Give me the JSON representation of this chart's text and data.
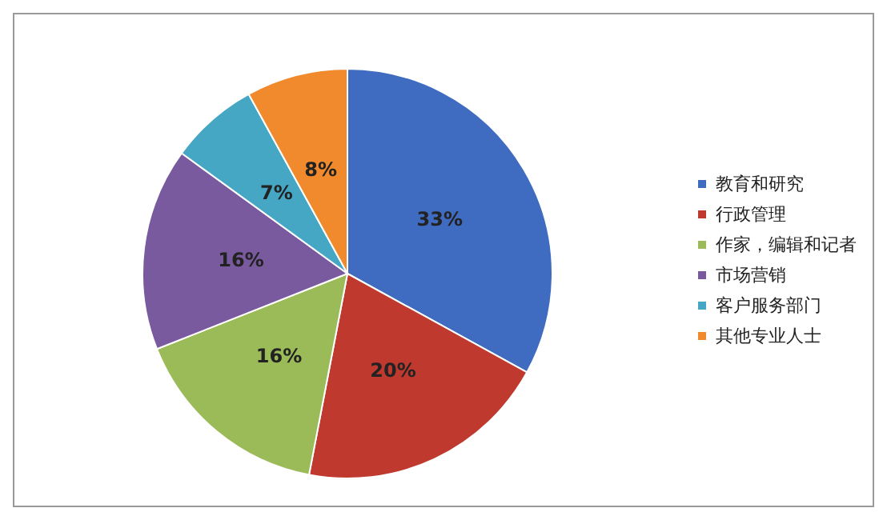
{
  "chart_data": {
    "type": "pie",
    "categories": [
      "教育和研究",
      "行政管理",
      "作家，编辑和记者",
      "市场营销",
      "客户服务部门",
      "其他专业人士"
    ],
    "values": [
      33,
      20,
      16,
      16,
      7,
      8
    ],
    "colors": [
      "#3f6cc0",
      "#c0392f",
      "#9bbb59",
      "#7a5a9e",
      "#45a7c4",
      "#f08a2c"
    ],
    "value_labels": [
      "33%",
      "20%",
      "16%",
      "16%",
      "7%",
      "8%"
    ],
    "legend": "right"
  }
}
